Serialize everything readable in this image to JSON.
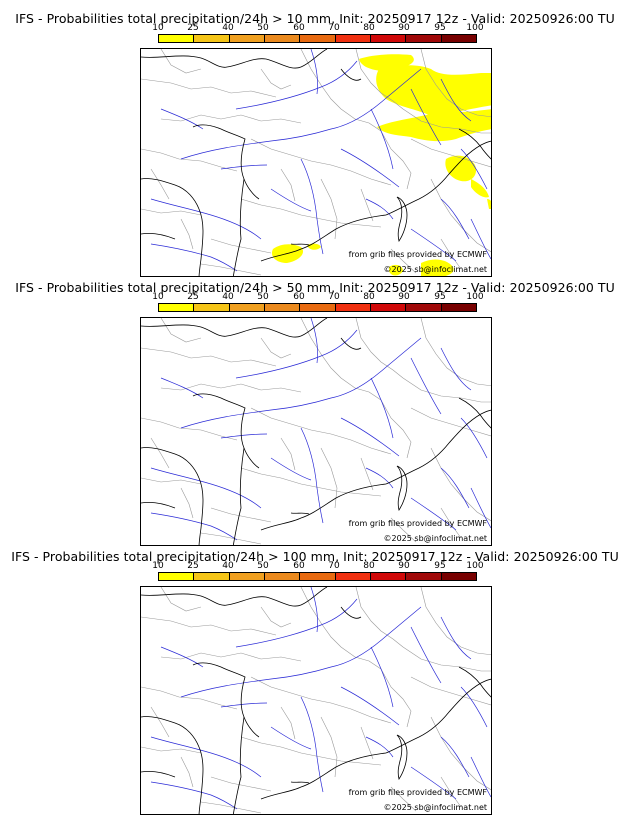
{
  "colorbar": {
    "ticks": [
      "10",
      "25",
      "40",
      "50",
      "60",
      "70",
      "80",
      "90",
      "95",
      "100"
    ],
    "colors": [
      "#ffff00",
      "#f5c518",
      "#f0a020",
      "#eb8a1e",
      "#e86a10",
      "#f03010",
      "#d00808",
      "#a00808",
      "#780000"
    ]
  },
  "panels": [
    {
      "title": "IFS - Probabilities total precipitation/24h > 10 mm, Init: 20250917 12z - Valid: 20250926:00 TU",
      "has_rain": true
    },
    {
      "title": "IFS - Probabilities total precipitation/24h > 50 mm, Init: 20250917 12z - Valid: 20250926:00 TU",
      "has_rain": false
    },
    {
      "title": "IFS - Probabilities total precipitation/24h > 100 mm, Init: 20250917 12z - Valid: 20250926:00 TU",
      "has_rain": false
    }
  ],
  "credits": {
    "source": "from grib files provided by ECMWF",
    "copyright": "©2025 sb@infoclimat.net"
  },
  "map_colors": {
    "coast": "#000000",
    "rivers": "#2b2bd6",
    "borders": "#9a9a9a",
    "rain": "#ffff00"
  }
}
